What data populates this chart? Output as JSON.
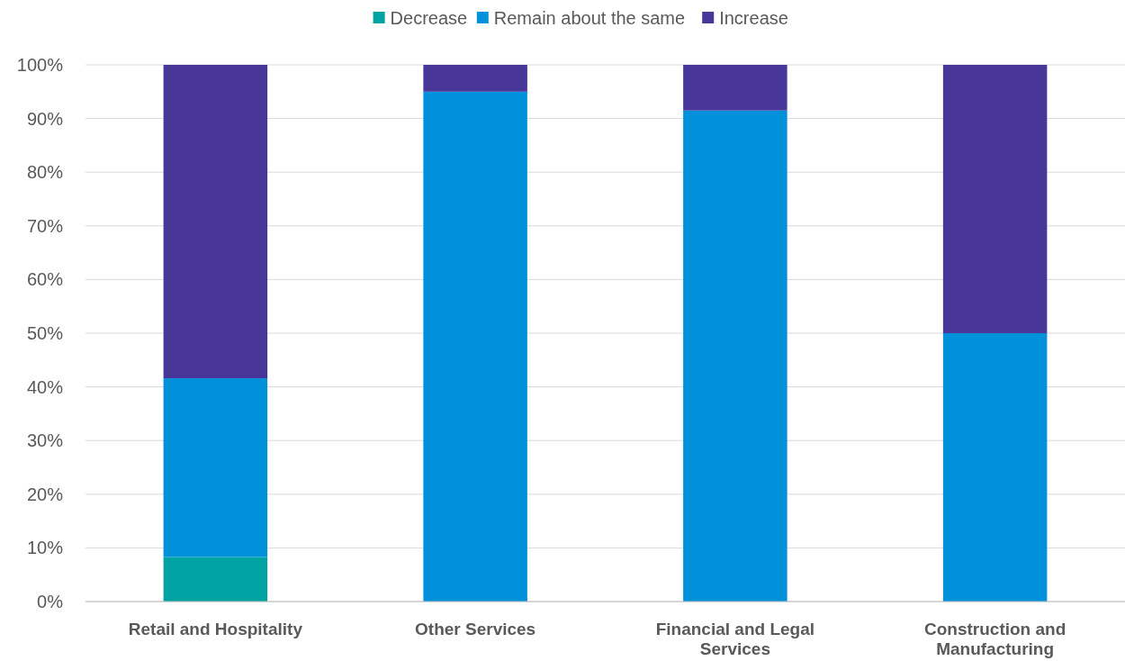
{
  "chart_data": {
    "type": "bar",
    "stacked": true,
    "categories": [
      "Retail and Hospitality",
      "Other Services",
      "Financial and Legal Services",
      "Construction and Manufacturing"
    ],
    "series": [
      {
        "name": "Decrease",
        "color": "#00a3a1",
        "values": [
          8.3,
          0,
          0,
          0
        ]
      },
      {
        "name": "Remain about the same",
        "color": "#0091da",
        "values": [
          33.3,
          95,
          91.5,
          50
        ]
      },
      {
        "name": "Increase",
        "color": "#483698",
        "values": [
          58.4,
          5,
          8.5,
          50
        ]
      }
    ],
    "ylim": [
      0,
      100
    ],
    "yticks": [
      {
        "value": 0,
        "label": "0%"
      },
      {
        "value": 10,
        "label": "10%"
      },
      {
        "value": 20,
        "label": "20%"
      },
      {
        "value": 30,
        "label": "30%"
      },
      {
        "value": 40,
        "label": "40%"
      },
      {
        "value": 50,
        "label": "50%"
      },
      {
        "value": 60,
        "label": "60%"
      },
      {
        "value": 70,
        "label": "70%"
      },
      {
        "value": 80,
        "label": "80%"
      },
      {
        "value": 90,
        "label": "90%"
      },
      {
        "value": 100,
        "label": "100%"
      }
    ],
    "grid": "y",
    "legend": "top"
  }
}
